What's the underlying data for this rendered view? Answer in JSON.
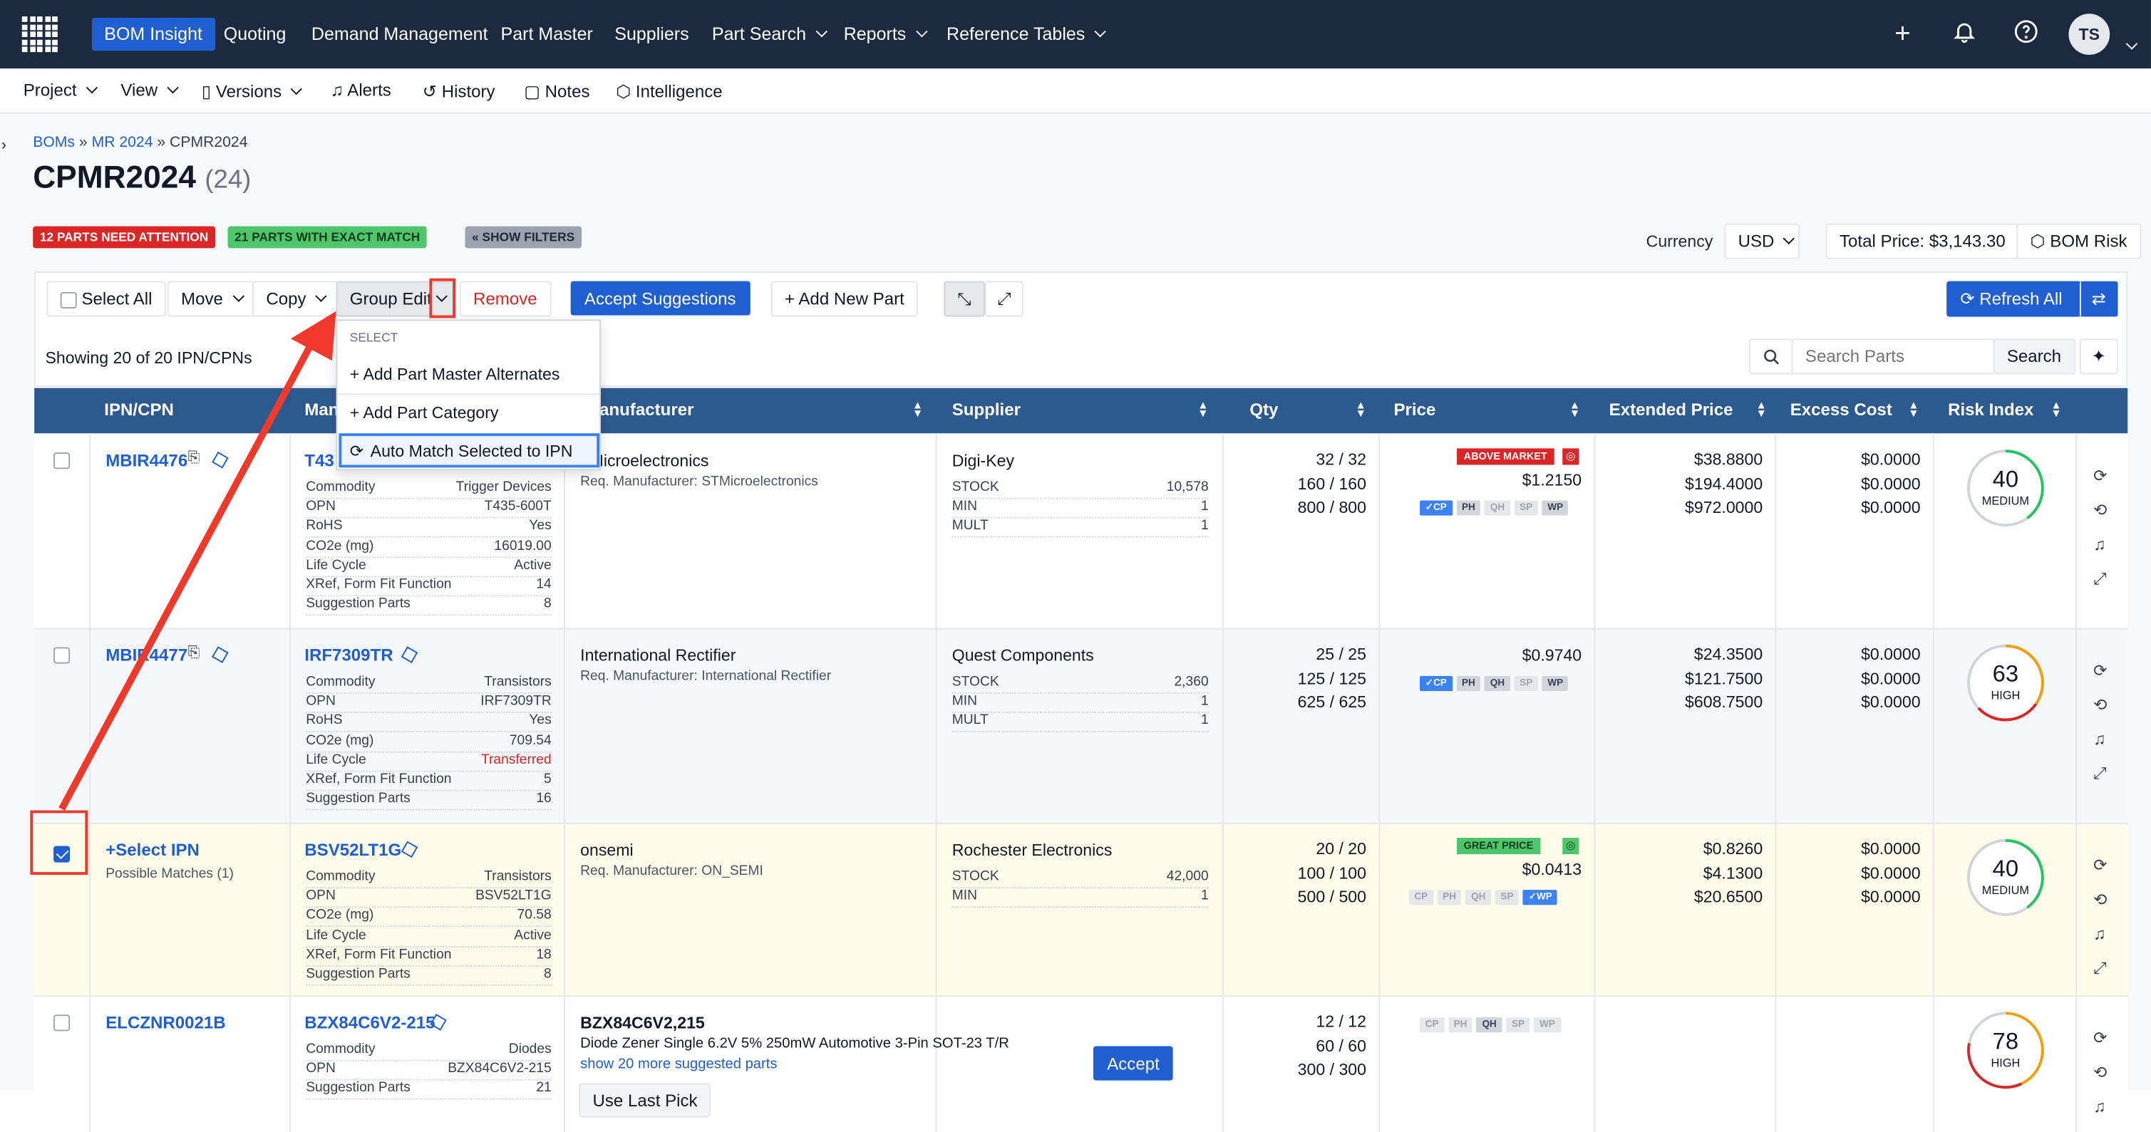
{
  "nav": {
    "items": [
      "BOM Insight",
      "Quoting",
      "Demand Management",
      "Part Master",
      "Suppliers",
      "Part Search",
      "Reports",
      "Reference Tables"
    ],
    "avatar": "TS"
  },
  "subnav": {
    "items": [
      "Project",
      "View",
      "Versions",
      "Alerts",
      "History",
      "Notes",
      "Intelligence"
    ]
  },
  "breadcrumb": {
    "bom": "BOMs",
    "folder": "MR 2024",
    "current": "CPMR2024"
  },
  "page": {
    "title": "CPMR2024",
    "count": "(24)"
  },
  "badges": {
    "attention": "12 PARTS NEED ATTENTION",
    "exact": "21 PARTS WITH EXACT MATCH",
    "filters": "« SHOW FILTERS"
  },
  "currency": {
    "label": "Currency",
    "value": "USD"
  },
  "total": "Total Price: $3,143.30",
  "bom_risk": "BOM Risk",
  "toolbar": {
    "select_all": "Select All",
    "move": "Move",
    "copy": "Copy",
    "group_edit": "Group Edit",
    "remove": "Remove",
    "accept": "Accept Suggestions",
    "add_part": "Add New Part",
    "refresh": "Refresh All"
  },
  "showing": "Showing 20 of 20 IPN/CPNs",
  "search": {
    "placeholder": "Search Parts",
    "button": "Search"
  },
  "columns": [
    "IPN/CPN",
    "Man",
    "anufacturer",
    "Supplier",
    "Qty",
    "Price",
    "Extended Price",
    "Excess Cost",
    "Risk Index"
  ],
  "menu": {
    "header": "SELECT",
    "items": [
      "Add Part Master Alternates",
      "Add Part Category",
      "Auto Match Selected to IPN"
    ]
  },
  "rows": [
    {
      "ipn": "MBIR4476",
      "mpn": "T43",
      "mfr": "Microelectronics",
      "req": "Req. Manufacturer: STMicroelectronics",
      "attrs": [
        [
          "Commodity",
          "Trigger Devices"
        ],
        [
          "OPN",
          "T435-600T"
        ],
        [
          "RoHS",
          "Yes"
        ],
        [
          "CO2e (mg)",
          "16019.00"
        ],
        [
          "Life Cycle",
          "Active"
        ],
        [
          "XRef, Form Fit Function",
          "14"
        ],
        [
          "Suggestion Parts",
          "8"
        ]
      ],
      "supplier": "Digi-Key",
      "stock": [
        [
          "STOCK",
          "10,578"
        ],
        [
          "MIN",
          "1"
        ],
        [
          "MULT",
          "1"
        ]
      ],
      "qty": [
        "32 / 32",
        "160 / 160",
        "800 / 800"
      ],
      "price_badge": "ABOVE MARKET",
      "price": "$1.2150",
      "ext": [
        "$38.8800",
        "$194.4000",
        "$972.0000"
      ],
      "excess": [
        "$0.0000",
        "$0.0000",
        "$0.0000"
      ],
      "risk": "40",
      "risk_level": "MEDIUM"
    },
    {
      "ipn": "MBIR4477",
      "mpn": "IRF7309TR",
      "mfr": "International Rectifier",
      "req": "Req. Manufacturer: International Rectifier",
      "attrs": [
        [
          "Commodity",
          "Transistors"
        ],
        [
          "OPN",
          "IRF7309TR"
        ],
        [
          "RoHS",
          "Yes"
        ],
        [
          "CO2e (mg)",
          "709.54"
        ],
        [
          "Life Cycle",
          "Transferred"
        ],
        [
          "XRef, Form Fit Function",
          "5"
        ],
        [
          "Suggestion Parts",
          "16"
        ]
      ],
      "supplier": "Quest Components",
      "stock": [
        [
          "STOCK",
          "2,360"
        ],
        [
          "MIN",
          "1"
        ],
        [
          "MULT",
          "1"
        ]
      ],
      "qty": [
        "25 / 25",
        "125 / 125",
        "625 / 625"
      ],
      "price": "$0.9740",
      "ext": [
        "$24.3500",
        "$121.7500",
        "$608.7500"
      ],
      "excess": [
        "$0.0000",
        "$0.0000",
        "$0.0000"
      ],
      "risk": "63",
      "risk_level": "HIGH"
    },
    {
      "ipn": "+Select IPN",
      "sub": "Possible Matches (1)",
      "mpn": "BSV52LT1G",
      "mfr": "onsemi",
      "req": "Req. Manufacturer: ON_SEMI",
      "attrs": [
        [
          "Commodity",
          "Transistors"
        ],
        [
          "OPN",
          "BSV52LT1G"
        ],
        [
          "CO2e (mg)",
          "70.58"
        ],
        [
          "Life Cycle",
          "Active"
        ],
        [
          "XRef, Form Fit Function",
          "18"
        ],
        [
          "Suggestion Parts",
          "8"
        ]
      ],
      "supplier": "Rochester Electronics",
      "stock": [
        [
          "STOCK",
          "42,000"
        ],
        [
          "MIN",
          "1"
        ]
      ],
      "qty": [
        "20 / 20",
        "100 / 100",
        "500 / 500"
      ],
      "price_badge": "GREAT PRICE",
      "price": "$0.0413",
      "ext": [
        "$0.8260",
        "$4.1300",
        "$20.6500"
      ],
      "excess": [
        "$0.0000",
        "$0.0000",
        "$0.0000"
      ],
      "risk": "40",
      "risk_level": "MEDIUM"
    },
    {
      "ipn": "ELCZNR0021B",
      "mpn": "BZX84C6V2-215",
      "mfr": "BZX84C6V2,215",
      "req": "Diode Zener Single 6.2V 5% 250mW Automotive 3-Pin SOT-23 T/R",
      "more": "show 20 more suggested parts",
      "accept": "Accept",
      "last_pick": "Use Last Pick",
      "attrs": [
        [
          "Commodity",
          "Diodes"
        ],
        [
          "OPN",
          "BZX84C6V2-215"
        ],
        [
          "Suggestion Parts",
          "21"
        ]
      ],
      "qty": [
        "12 / 12",
        "60 / 60",
        "300 / 300"
      ],
      "risk": "78",
      "risk_level": "HIGH"
    }
  ],
  "price_tags": [
    "CP",
    "PH",
    "QH",
    "SP",
    "WP"
  ],
  "colors": {
    "nav": "#1b2a3e",
    "accent": "#1f5fd1",
    "header": "#2d5a8e",
    "red": "#ef3a2b"
  }
}
